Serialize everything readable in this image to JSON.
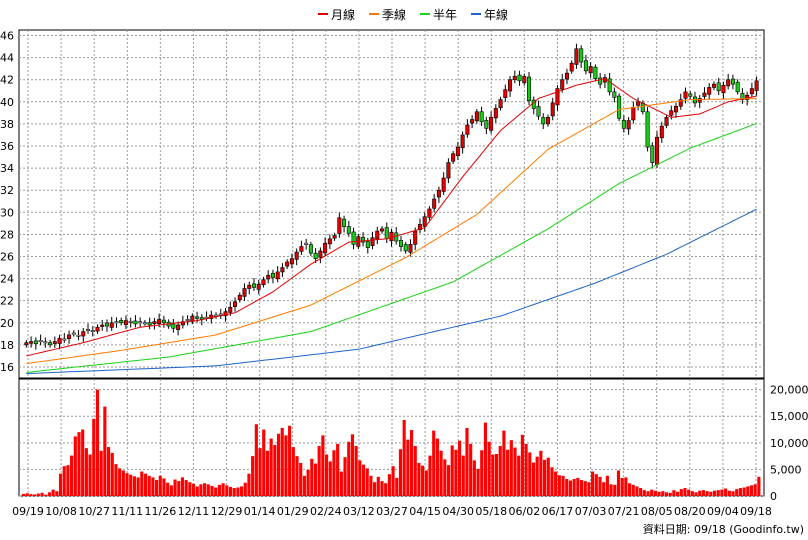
{
  "legend": {
    "ma_month": {
      "label": "月線",
      "color": "#e00000"
    },
    "ma_quarter": {
      "label": "季線",
      "color": "#ff7a00"
    },
    "ma_halfyear": {
      "label": "半年",
      "color": "#19d219"
    },
    "ma_year": {
      "label": "年線",
      "color": "#1e64c8"
    }
  },
  "footer": {
    "text": "資料日期: 09/18  (Goodinfo.tw)"
  },
  "chart_data": [
    {
      "type": "candlestick",
      "title": "",
      "ylim": [
        15,
        46.5
      ],
      "y_ticks": [
        "46",
        "44",
        "42",
        "40",
        "38",
        "36",
        "34",
        "32",
        "30",
        "28",
        "26",
        "24",
        "22",
        "20",
        "18",
        "16"
      ],
      "x_ticks": [
        "09/19",
        "10/08",
        "10/27",
        "11/11",
        "11/26",
        "12/11",
        "12/29",
        "01/14",
        "01/29",
        "02/24",
        "03/12",
        "03/27",
        "04/15",
        "04/30",
        "05/18",
        "06/02",
        "06/17",
        "07/03",
        "07/21",
        "08/05",
        "08/20",
        "09/04",
        "09/18"
      ],
      "grid": true,
      "closes": [
        18.2,
        18.3,
        18.1,
        18.4,
        18.2,
        18.0,
        18.3,
        18.6,
        18.5,
        18.9,
        19.0,
        18.8,
        19.2,
        19.4,
        19.3,
        19.6,
        19.8,
        19.7,
        20.0,
        20.1,
        20.0,
        20.2,
        20.1,
        19.9,
        20.1,
        20.0,
        19.8,
        20.1,
        20.3,
        20.0,
        19.7,
        19.5,
        19.8,
        20.1,
        20.3,
        20.6,
        20.4,
        20.3,
        20.5,
        20.7,
        20.6,
        20.8,
        21.0,
        21.4,
        21.9,
        22.5,
        23.1,
        23.4,
        23.2,
        23.5,
        23.9,
        24.3,
        24.1,
        24.6,
        25.0,
        25.5,
        25.8,
        26.4,
        26.9,
        27.2,
        26.3,
        25.8,
        26.5,
        27.2,
        27.6,
        27.9,
        29.5,
        28.7,
        28.1,
        27.1,
        27.8,
        27.3,
        26.8,
        27.7,
        28.3,
        28.5,
        27.6,
        28.2,
        27.4,
        26.9,
        26.5,
        27.1,
        28.3,
        28.9,
        29.6,
        30.3,
        31.2,
        32.0,
        33.1,
        34.5,
        35.3,
        35.9,
        37.0,
        37.9,
        38.4,
        39.1,
        38.2,
        37.6,
        38.6,
        39.4,
        40.2,
        41.1,
        42.0,
        42.3,
        41.9,
        42.3,
        40.1,
        39.4,
        38.7,
        38.0,
        38.6,
        39.9,
        41.2,
        42.0,
        42.6,
        43.5,
        44.8,
        43.6,
        42.8,
        43.2,
        42.1,
        41.6,
        42.2,
        40.9,
        40.4,
        38.5,
        37.6,
        38.3,
        39.5,
        40.0,
        39.1,
        35.9,
        34.5,
        36.8,
        37.8,
        38.6,
        39.2,
        39.6,
        40.2,
        40.9,
        40.5,
        39.9,
        40.3,
        40.8,
        41.3,
        41.6,
        41.0,
        41.5,
        42.0,
        41.6,
        40.9,
        40.2,
        40.6,
        41.2,
        41.9
      ],
      "series": [
        {
          "name": "月線",
          "anchors": [
            [
              0,
              17.0
            ],
            [
              12,
              18.2
            ],
            [
              24,
              19.6
            ],
            [
              36,
              20.2
            ],
            [
              44,
              20.9
            ],
            [
              52,
              22.8
            ],
            [
              60,
              25.3
            ],
            [
              68,
              27.3
            ],
            [
              76,
              27.6
            ],
            [
              84,
              28.6
            ],
            [
              92,
              33.2
            ],
            [
              100,
              37.4
            ],
            [
              108,
              40.3
            ],
            [
              116,
              41.5
            ],
            [
              122,
              42.1
            ],
            [
              128,
              40.3
            ],
            [
              136,
              38.6
            ],
            [
              142,
              38.9
            ],
            [
              148,
              40.0
            ],
            [
              155,
              40.6
            ]
          ]
        },
        {
          "name": "季線",
          "anchors": [
            [
              0,
              16.3
            ],
            [
              20,
              17.5
            ],
            [
              40,
              18.9
            ],
            [
              60,
              21.6
            ],
            [
              80,
              25.9
            ],
            [
              95,
              29.8
            ],
            [
              110,
              35.7
            ],
            [
              125,
              39.3
            ],
            [
              140,
              40.2
            ],
            [
              155,
              40.3
            ]
          ]
        },
        {
          "name": "半年",
          "anchors": [
            [
              0,
              15.5
            ],
            [
              30,
              16.9
            ],
            [
              60,
              19.2
            ],
            [
              90,
              23.7
            ],
            [
              110,
              28.5
            ],
            [
              125,
              32.6
            ],
            [
              140,
              35.8
            ],
            [
              155,
              38.2
            ]
          ]
        },
        {
          "name": "年線",
          "anchors": [
            [
              0,
              15.4
            ],
            [
              40,
              16.1
            ],
            [
              70,
              17.6
            ],
            [
              100,
              20.6
            ],
            [
              120,
              23.6
            ],
            [
              135,
              26.2
            ],
            [
              155,
              30.5
            ]
          ]
        }
      ]
    },
    {
      "type": "bar",
      "title": "",
      "ylim": [
        0,
        22000
      ],
      "y_ticks": [
        "20,000",
        "15,000",
        "10,000",
        "5,000",
        "0"
      ],
      "values": [
        400,
        500,
        350,
        300,
        450,
        600,
        250,
        700,
        1200,
        900,
        4200,
        5600,
        5800,
        7600,
        11200,
        12000,
        12500,
        9000,
        7800,
        14500,
        20000,
        8500,
        16800,
        9200,
        8100,
        6000,
        5200,
        4800,
        4300,
        4000,
        3700,
        3500,
        4600,
        4200,
        3800,
        3500,
        3000,
        3800,
        3300,
        2500,
        2000,
        3100,
        2800,
        3500,
        3000,
        2600,
        2300,
        1800,
        2200,
        2400,
        2200,
        1900,
        1600,
        2100,
        2400,
        2000,
        1700,
        1500,
        1600,
        1800,
        2500,
        4200,
        7500,
        13500,
        9000,
        12500,
        8500,
        10800,
        9600,
        11700,
        12800,
        11400,
        13200,
        9200,
        7500,
        6200,
        3800,
        4900,
        7000,
        6100,
        9400,
        11400,
        7800,
        6500,
        8600,
        9800,
        4600,
        7300,
        10200,
        11600,
        9400,
        6700,
        5900,
        5200,
        3800,
        2600,
        3600,
        2800,
        2400,
        4100,
        5600,
        3400,
        8800,
        14300,
        10600,
        12400,
        9400,
        6200,
        5700,
        4800,
        7600,
        12300,
        10800,
        8500,
        6900,
        5800,
        9500,
        8700,
        10400,
        7600,
        12800,
        9800,
        6700,
        5100,
        8600,
        13800,
        10200,
        7800,
        7900,
        9400,
        12300,
        8700,
        10500,
        9100,
        7600,
        11500,
        9800,
        8200,
        6300,
        7400,
        8500,
        6800,
        7200,
        5400,
        4600,
        3900,
        3800,
        3200,
        2900,
        3200,
        3400,
        3000,
        2800,
        2600,
        4600,
        4100,
        3600,
        2600,
        3800,
        2200,
        2100,
        4800,
        3400,
        3500,
        2400,
        2100,
        1800,
        1500,
        1100,
        900,
        1200,
        1000,
        800,
        900,
        700,
        600,
        1100,
        800,
        1300,
        1500,
        1200,
        900,
        700,
        1000,
        1100,
        900,
        800,
        1000,
        1100,
        1200,
        1400,
        1000,
        900,
        1300,
        1500,
        1600,
        1800,
        2000,
        2200,
        3600
      ]
    }
  ]
}
